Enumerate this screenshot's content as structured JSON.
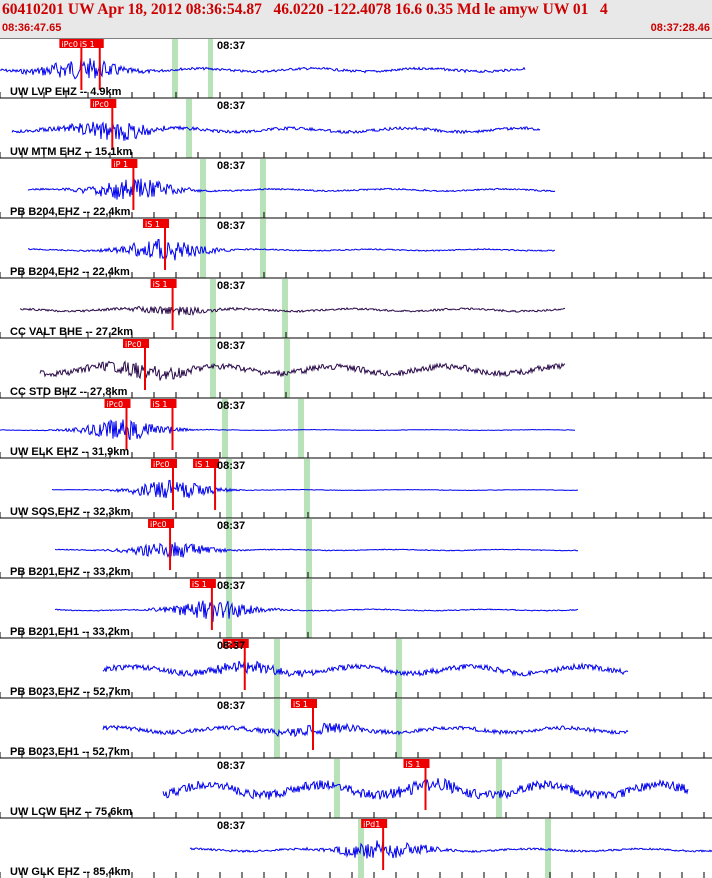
{
  "header": {
    "title": "60410201 UW Apr 18, 2012 08:36:54.87   46.0220 -122.4078 16.6 0.35 Md le amyw UW 01   4",
    "start_time": "08:36:47.65",
    "end_time": "08:37:28.46"
  },
  "minute_label": "08:37",
  "colors": {
    "trace_blue": "#0000ee",
    "trace_purple": "#2a0a4a",
    "pick_red": "#ee0000",
    "window_green": "#b8e2b8"
  },
  "traces": [
    {
      "label": "UW LVP EHZ -- 4.9km",
      "color": "blue",
      "amp": 0.25,
      "burst": 0.8,
      "picks": [
        "iPc0",
        "iS 1"
      ],
      "pickAt": [
        0.155,
        0.19
      ]
    },
    {
      "label": "UW MTM EHZ -- 15.1km",
      "color": "blue",
      "amp": 0.3,
      "burst": 0.7,
      "picks": [
        "iPc0"
      ],
      "pickAt": [
        0.19
      ]
    },
    {
      "label": "PB B204,EHZ -- 22,4km",
      "color": "blue",
      "amp": 0.15,
      "burst": 0.9,
      "picks": [
        "iP 1"
      ],
      "pickAt": [
        0.2
      ]
    },
    {
      "label": "PB B204,EH2 -- 22,4km",
      "color": "blue",
      "amp": 0.12,
      "burst": 0.9,
      "picks": [
        "iS 1"
      ],
      "pickAt": [
        0.26
      ]
    },
    {
      "label": "CC VALT BHE -- 27,2km",
      "color": "purple",
      "amp": 0.2,
      "burst": 0.3,
      "picks": [
        "iS 1"
      ],
      "pickAt": [
        0.28
      ]
    },
    {
      "label": "CC STD BHZ -- 27,8km",
      "color": "purple",
      "amp": 0.6,
      "burst": 0.4,
      "picks": [
        "iPc0"
      ],
      "pickAt": [
        0.2
      ]
    },
    {
      "label": "UW ELK EHZ -- 31,9km",
      "color": "blue",
      "amp": 0.05,
      "burst": 0.9,
      "picks": [
        "iPc0",
        "iS 1"
      ],
      "pickAt": [
        0.22,
        0.3
      ]
    },
    {
      "label": "UW SOS,EHZ -- 32,3km",
      "color": "blue",
      "amp": 0.05,
      "burst": 0.8,
      "picks": [
        "iPc0",
        "iS 1"
      ],
      "pickAt": [
        0.23,
        0.31
      ]
    },
    {
      "label": "PB B201,EHZ -- 33,2km",
      "color": "blue",
      "amp": 0.08,
      "burst": 0.7,
      "picks": [
        "iPc0"
      ],
      "pickAt": [
        0.22
      ]
    },
    {
      "label": "PB B201,EH1 -- 33,2km",
      "color": "blue",
      "amp": 0.1,
      "burst": 0.9,
      "picks": [
        "iS 1"
      ],
      "pickAt": [
        0.3
      ]
    },
    {
      "label": "PB B023,EHZ -- 52,7km",
      "color": "blue",
      "amp": 0.55,
      "burst": 0.3,
      "picks": [
        "iP 1"
      ],
      "pickAt": [
        0.27
      ]
    },
    {
      "label": "PB B023,EH1 -- 52,7km",
      "color": "blue",
      "amp": 0.4,
      "burst": 0.3,
      "picks": [
        "iS 1"
      ],
      "pickAt": [
        0.4
      ]
    },
    {
      "label": "UW LCW EHZ -- 75,6km",
      "color": "blue",
      "amp": 0.9,
      "burst": 0.2,
      "picks": [
        "iS 1"
      ],
      "pickAt": [
        0.5
      ]
    },
    {
      "label": "UW GLK EHZ -- 85,4km",
      "color": "blue",
      "amp": 0.2,
      "burst": 0.8,
      "picks": [
        "iPd1"
      ],
      "pickAt": [
        0.37
      ]
    }
  ]
}
